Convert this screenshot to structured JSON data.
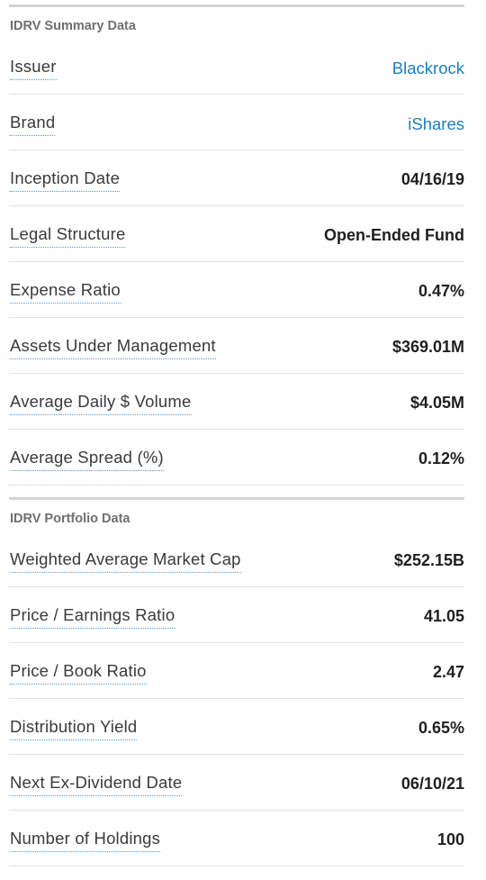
{
  "summary": {
    "title": "IDRV Summary Data",
    "rows": [
      {
        "label": "Issuer",
        "value": "Blackrock"
      },
      {
        "label": "Brand",
        "value": "iShares"
      },
      {
        "label": "Inception Date",
        "value": "04/16/19"
      },
      {
        "label": "Legal Structure",
        "value": "Open-Ended Fund"
      },
      {
        "label": "Expense Ratio",
        "value": "0.47%"
      },
      {
        "label": "Assets Under Management",
        "value": "$369.01M"
      },
      {
        "label": "Average Daily $ Volume",
        "value": "$4.05M"
      },
      {
        "label": "Average Spread (%)",
        "value": "0.12%"
      }
    ]
  },
  "portfolio": {
    "title": "IDRV Portfolio Data",
    "rows": [
      {
        "label": "Weighted Average Market Cap",
        "value": "$252.15B"
      },
      {
        "label": "Price / Earnings Ratio",
        "value": "41.05"
      },
      {
        "label": "Price / Book Ratio",
        "value": "2.47"
      },
      {
        "label": "Distribution Yield",
        "value": "0.65%"
      },
      {
        "label": "Next Ex-Dividend Date",
        "value": "06/10/21"
      },
      {
        "label": "Number of Holdings",
        "value": "100"
      }
    ]
  },
  "colors": {
    "link": "#1a7fc1",
    "header_text": "#6f6f6f",
    "tooltip_underline": "#4a9fd8"
  }
}
